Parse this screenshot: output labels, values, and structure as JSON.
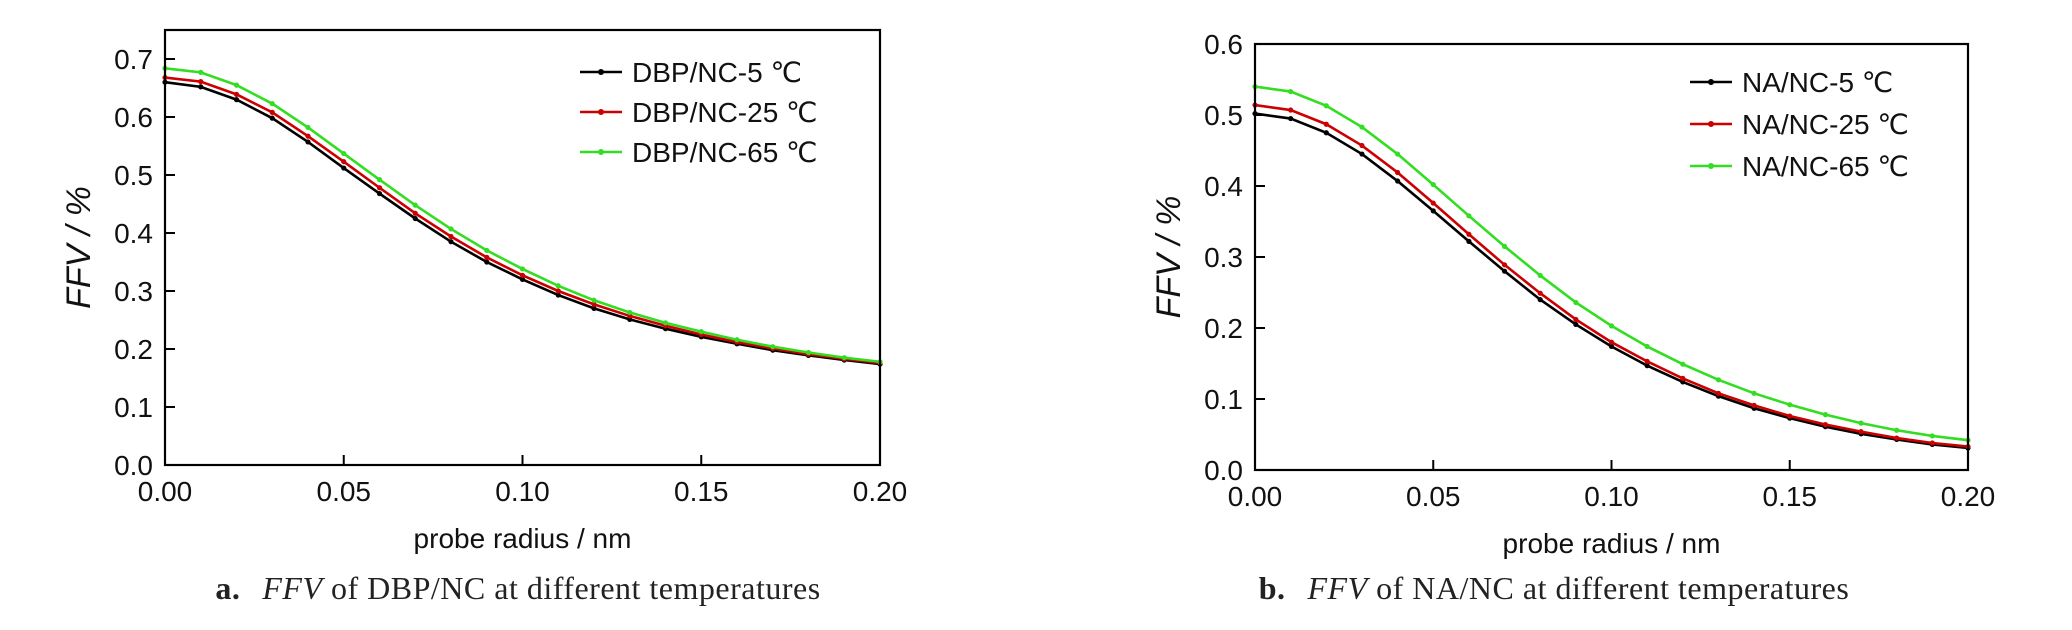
{
  "chart_data": [
    {
      "type": "line",
      "caption": {
        "letter": "a.",
        "italic": "FFV",
        "rest": "of DBP/NC at different temperatures"
      },
      "xlabel": "probe radius / nm",
      "ylabel": "FFV / %",
      "xlim": [
        0,
        0.2
      ],
      "ylim": [
        0,
        0.75
      ],
      "xticks": [
        "0.00",
        "0.05",
        "0.10",
        "0.15",
        "0.20"
      ],
      "yticks": [
        "0.0",
        "0.1",
        "0.2",
        "0.3",
        "0.4",
        "0.5",
        "0.6",
        "0.7"
      ],
      "legend_position": "top-right",
      "x": [
        0.0,
        0.01,
        0.02,
        0.03,
        0.04,
        0.05,
        0.06,
        0.07,
        0.08,
        0.09,
        0.1,
        0.11,
        0.12,
        0.13,
        0.14,
        0.15,
        0.16,
        0.17,
        0.18,
        0.19,
        0.2
      ],
      "series": [
        {
          "name": "DBP/NC-5 ℃",
          "color": "#000000",
          "values": [
            0.66,
            0.652,
            0.63,
            0.598,
            0.557,
            0.512,
            0.468,
            0.425,
            0.385,
            0.35,
            0.32,
            0.293,
            0.27,
            0.251,
            0.235,
            0.221,
            0.209,
            0.198,
            0.189,
            0.181,
            0.174
          ]
        },
        {
          "name": "DBP/NC-25 ℃",
          "color": "#cc0000",
          "values": [
            0.668,
            0.661,
            0.639,
            0.608,
            0.567,
            0.523,
            0.478,
            0.434,
            0.394,
            0.358,
            0.327,
            0.3,
            0.277,
            0.257,
            0.24,
            0.225,
            0.212,
            0.201,
            0.191,
            0.183,
            0.176
          ]
        },
        {
          "name": "DBP/NC-65 ℃",
          "color": "#33dd22",
          "values": [
            0.684,
            0.677,
            0.655,
            0.623,
            0.582,
            0.537,
            0.492,
            0.448,
            0.407,
            0.37,
            0.338,
            0.309,
            0.284,
            0.263,
            0.245,
            0.23,
            0.216,
            0.204,
            0.194,
            0.185,
            0.178
          ]
        }
      ]
    },
    {
      "type": "line",
      "caption": {
        "letter": "b.",
        "italic": "FFV",
        "rest": "of NA/NC at different temperatures"
      },
      "xlabel": "probe radius / nm",
      "ylabel": "FFV / %",
      "xlim": [
        0,
        0.2
      ],
      "ylim": [
        0,
        0.6
      ],
      "xticks": [
        "0.00",
        "0.05",
        "0.10",
        "0.15",
        "0.20"
      ],
      "yticks": [
        "0.0",
        "0.1",
        "0.2",
        "0.3",
        "0.4",
        "0.5",
        "0.6"
      ],
      "legend_position": "top-right",
      "x": [
        0.0,
        0.01,
        0.02,
        0.03,
        0.04,
        0.05,
        0.06,
        0.07,
        0.08,
        0.09,
        0.1,
        0.11,
        0.12,
        0.13,
        0.14,
        0.15,
        0.16,
        0.17,
        0.18,
        0.19,
        0.2
      ],
      "series": [
        {
          "name": "NA/NC-5 ℃",
          "color": "#000000",
          "values": [
            0.502,
            0.495,
            0.475,
            0.445,
            0.407,
            0.365,
            0.322,
            0.28,
            0.24,
            0.205,
            0.174,
            0.147,
            0.124,
            0.104,
            0.087,
            0.073,
            0.061,
            0.051,
            0.043,
            0.036,
            0.031
          ]
        },
        {
          "name": "NA/NC-25 ℃",
          "color": "#cc0000",
          "values": [
            0.514,
            0.507,
            0.487,
            0.457,
            0.419,
            0.376,
            0.332,
            0.289,
            0.249,
            0.212,
            0.18,
            0.153,
            0.129,
            0.108,
            0.091,
            0.076,
            0.064,
            0.054,
            0.045,
            0.038,
            0.033
          ]
        },
        {
          "name": "NA/NC-65 ℃",
          "color": "#33dd22",
          "values": [
            0.54,
            0.533,
            0.513,
            0.483,
            0.445,
            0.402,
            0.358,
            0.315,
            0.274,
            0.236,
            0.203,
            0.174,
            0.149,
            0.127,
            0.108,
            0.092,
            0.078,
            0.066,
            0.056,
            0.048,
            0.042
          ]
        }
      ]
    }
  ]
}
